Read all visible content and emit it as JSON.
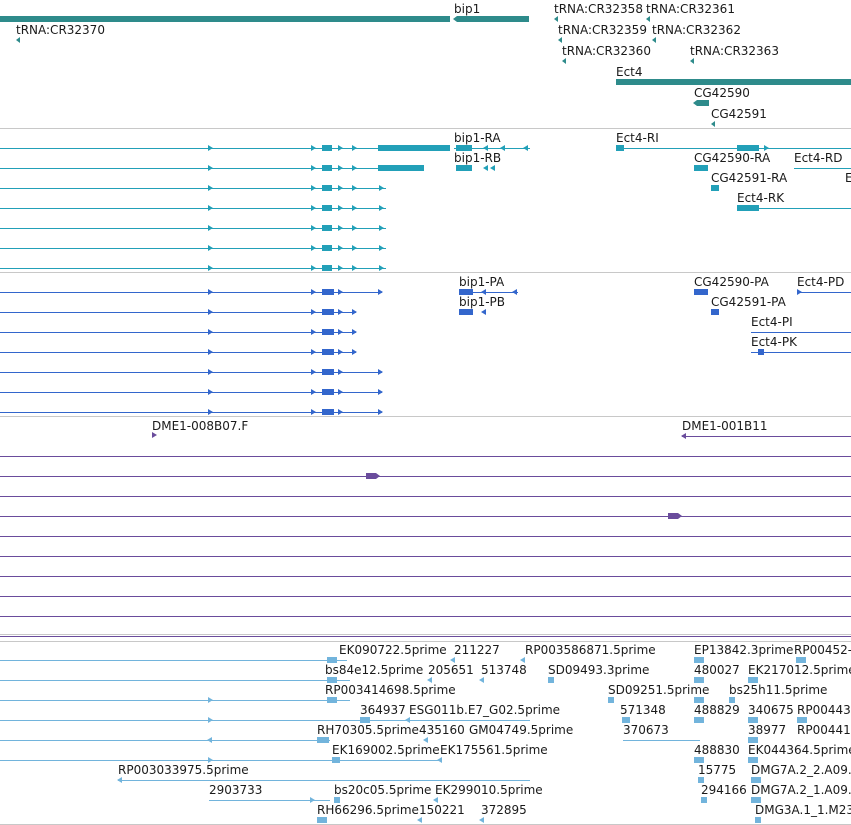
{
  "colors": {
    "gene": "#2e8b8b",
    "transcript": "#22a0b8",
    "protein": "#3366cc",
    "clone": "#6a4c9c",
    "est": "#72b4dc",
    "separator": "#c8c8c8",
    "text": "#1a1a1a"
  },
  "tracks": {
    "genes": [
      {
        "label": "bip1"
      },
      {
        "label": "tRNA:CR32370"
      },
      {
        "label": "tRNA:CR32358"
      },
      {
        "label": "tRNA:CR32361"
      },
      {
        "label": "tRNA:CR32359"
      },
      {
        "label": "tRNA:CR32362"
      },
      {
        "label": "tRNA:CR32360"
      },
      {
        "label": "tRNA:CR32363"
      },
      {
        "label": "Ect4"
      },
      {
        "label": "CG42590"
      },
      {
        "label": "CG42591"
      }
    ],
    "transcripts": [
      {
        "label": "bip1-RA"
      },
      {
        "label": "bip1-RB"
      },
      {
        "label": "Ect4-RI"
      },
      {
        "label": "CG42590-RA"
      },
      {
        "label": "Ect4-RD"
      },
      {
        "label": "CG42591-RA"
      },
      {
        "label": "E"
      },
      {
        "label": "Ect4-RK"
      }
    ],
    "proteins": [
      {
        "label": "bip1-PA"
      },
      {
        "label": "bip1-PB"
      },
      {
        "label": "CG42590-PA"
      },
      {
        "label": "Ect4-PD"
      },
      {
        "label": "CG42591-PA"
      },
      {
        "label": "Ect4-PI"
      },
      {
        "label": "Ect4-PK"
      }
    ],
    "clones": [
      {
        "label": "DME1-008B07.F"
      },
      {
        "label": "DME1-001B11"
      }
    ],
    "ests": [
      {
        "label": "EK090722.5prime"
      },
      {
        "label": "211227"
      },
      {
        "label": "RP003586871.5prime"
      },
      {
        "label": "EP13842.3prime"
      },
      {
        "label": "RP00452-"
      },
      {
        "label": "bs84e12.5prime"
      },
      {
        "label": "205651"
      },
      {
        "label": "513748"
      },
      {
        "label": "SD09493.3prime"
      },
      {
        "label": "480027"
      },
      {
        "label": "EK217012.5prime"
      },
      {
        "label": "RP003414698.5prime"
      },
      {
        "label": "SD09251.5prime"
      },
      {
        "label": "bs25h11.5prime"
      },
      {
        "label": "364937"
      },
      {
        "label": "ESG011b.E7_G02.5prime"
      },
      {
        "label": "571348"
      },
      {
        "label": "488829"
      },
      {
        "label": "340675"
      },
      {
        "label": "RP00443"
      },
      {
        "label": "RH70305.5prime"
      },
      {
        "label": "435160"
      },
      {
        "label": "GM04749.5prime"
      },
      {
        "label": "370673"
      },
      {
        "label": "38977"
      },
      {
        "label": "RP00441"
      },
      {
        "label": "EK169002.5prime"
      },
      {
        "label": "EK175561.5prime"
      },
      {
        "label": "488830"
      },
      {
        "label": "EK044364.5prime"
      },
      {
        "label": "RP003033975.5prime"
      },
      {
        "label": "15775"
      },
      {
        "label": "DMG7A.2_2.A09."
      },
      {
        "label": "2903733"
      },
      {
        "label": "bs20c05.5prime"
      },
      {
        "label": "EK299010.5prime"
      },
      {
        "label": "294166"
      },
      {
        "label": "DMG7A.2_1.A09."
      },
      {
        "label": "RH66296.5prime"
      },
      {
        "label": "150221"
      },
      {
        "label": "372895"
      },
      {
        "label": "DMG3A.1_1.M23"
      }
    ]
  }
}
